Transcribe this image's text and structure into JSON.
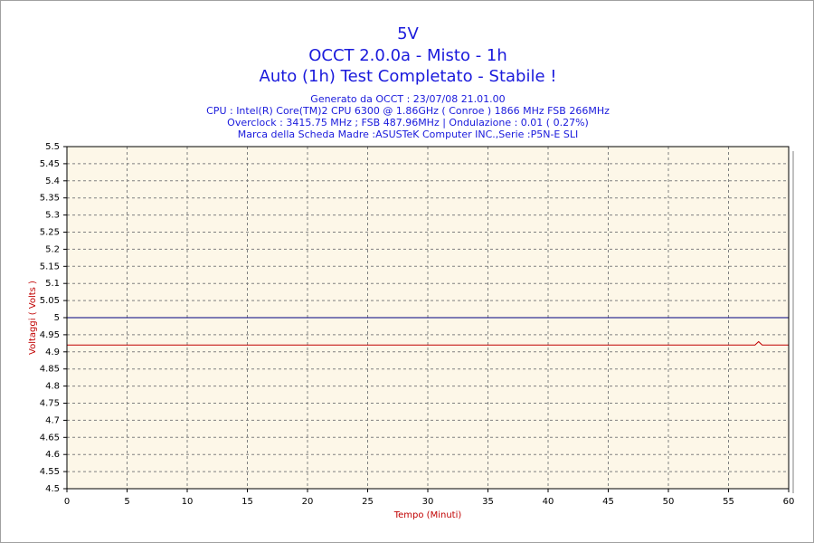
{
  "chart_data": {
    "type": "line",
    "title": "5V",
    "subtitles": [
      "OCCT 2.0.0a - Misto - 1h",
      "Auto (1h) Test Completato - Stabile !"
    ],
    "info": [
      "Generato da OCCT : 23/07/08 21.01.00",
      "CPU : Intel(R) Core(TM)2 CPU 6300 @ 1.86GHz ( Conroe ) 1866 MHz FSB 266MHz",
      "Overclock : 3415.75 MHz ; FSB 487.96MHz | Ondulazione : 0.01 ( 0.27%)",
      "Marca della Scheda Madre :ASUSTeK Computer INC.,Serie :P5N-E SLI"
    ],
    "x_label": "Tempo (Minuti)",
    "y_label": "Voltaggi ( Volts )",
    "series": [
      {
        "color": "#000080",
        "x": [
          0,
          60
        ],
        "values": [
          5,
          5
        ]
      },
      {
        "color": "#c00000",
        "x": [
          0,
          57.2,
          57.5,
          57.8,
          60
        ],
        "values": [
          4.92,
          4.92,
          4.93,
          4.92,
          4.92
        ]
      }
    ],
    "xlim": [
      0,
      60
    ],
    "xticks": [
      0,
      5,
      10,
      15,
      20,
      25,
      30,
      35,
      40,
      45,
      50,
      55,
      60
    ],
    "ylim": [
      4.5,
      5.5
    ],
    "yticks": [
      4.5,
      4.55,
      4.6,
      4.65,
      4.7,
      4.75,
      4.8,
      4.85,
      4.9,
      4.95,
      5,
      5.05,
      5.1,
      5.15,
      5.2,
      5.25,
      5.3,
      5.35,
      5.4,
      5.45,
      5.5
    ],
    "grid": true
  }
}
